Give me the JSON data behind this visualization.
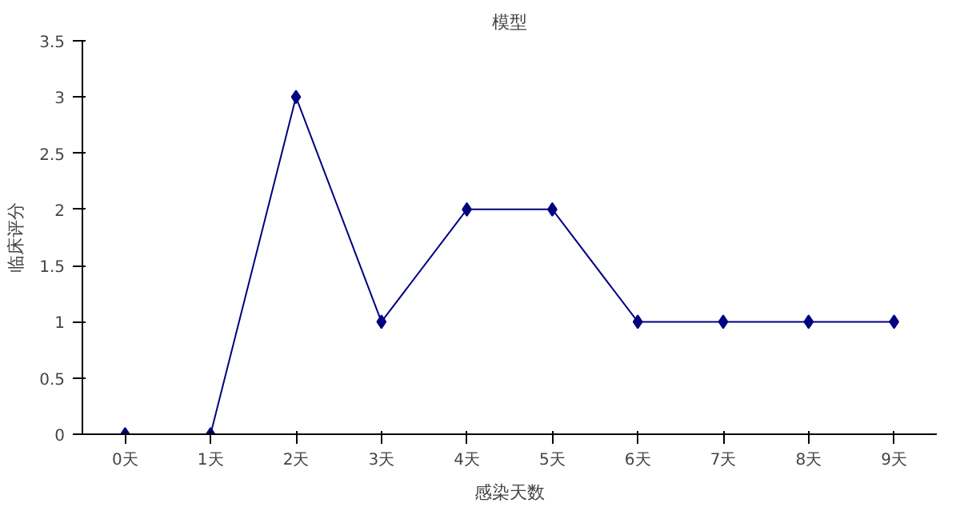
{
  "chart_data": {
    "type": "line",
    "title": "模型",
    "xlabel": "感染天数",
    "ylabel": "临床评分",
    "categories": [
      "0天",
      "1天",
      "2天",
      "3天",
      "4天",
      "5天",
      "6天",
      "7天",
      "8天",
      "9天"
    ],
    "series": [
      {
        "color": "#000080",
        "values": [
          0,
          0,
          3,
          1,
          2,
          2,
          1,
          1,
          1,
          1
        ]
      }
    ],
    "ylim": [
      0,
      3.5
    ],
    "yticks": [
      0,
      0.5,
      1,
      1.5,
      2,
      2.5,
      3,
      3.5
    ],
    "grid": false,
    "marker": "diamond",
    "line_style": "solid"
  }
}
